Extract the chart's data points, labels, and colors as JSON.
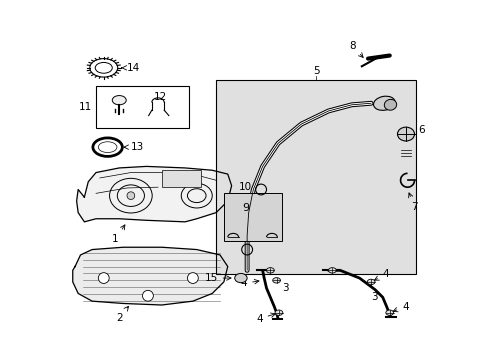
{
  "bg_color": "#ffffff",
  "line_color": "#000000",
  "gray_fill": "#e8e8e8",
  "dark_gray": "#c0c0c0",
  "label_fs": 7.5
}
